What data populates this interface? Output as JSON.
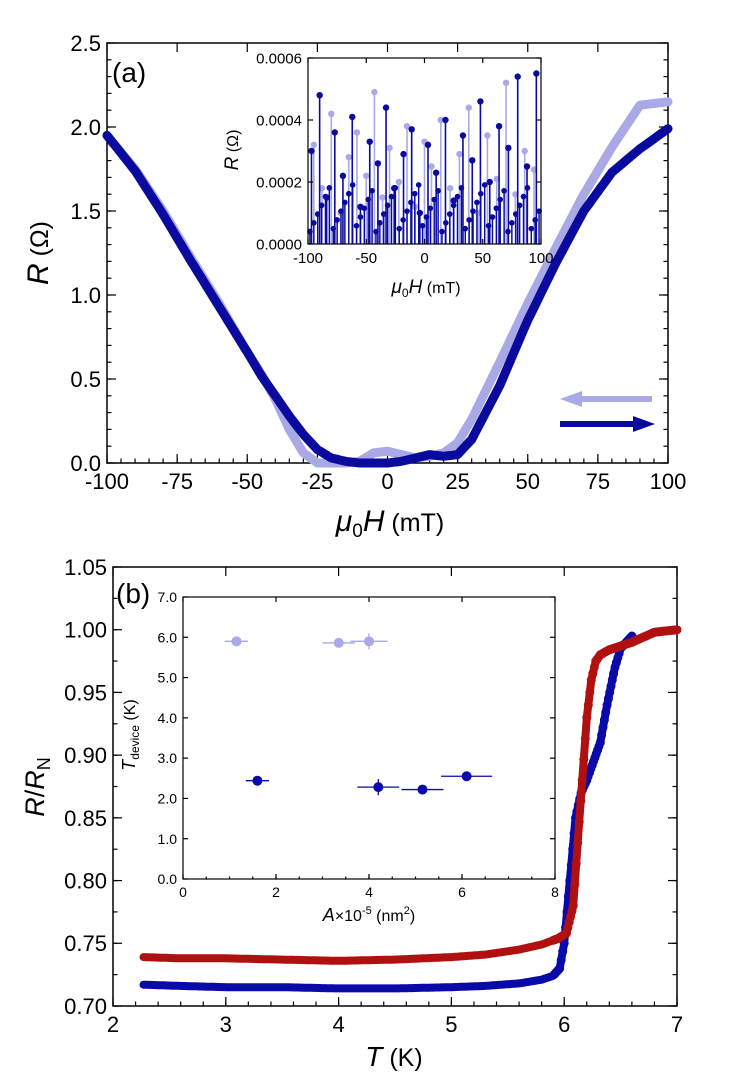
{
  "chart_data": [
    {
      "id": "a",
      "type": "line",
      "panel_label": "(a)",
      "xlabel_sym": "μ",
      "xlabel_sub": "0",
      "xlabel_var": "H",
      "xlabel_unit": "(mT)",
      "ylabel_var": "R",
      "ylabel_unit": "(Ω)",
      "xlim": [
        -100,
        100
      ],
      "ylim": [
        0,
        2.5
      ],
      "xticks": [
        "-100",
        "-75",
        "-50",
        "-25",
        "0",
        "25",
        "50",
        "75",
        "100"
      ],
      "yticks": [
        "0.0",
        "0.5",
        "1.0",
        "1.5",
        "2.0",
        "2.5"
      ],
      "legend": "arrows bottom-right: light = sweep down, dark = sweep up",
      "series": [
        {
          "name": "sweep down",
          "color": "#a9a9e6",
          "x": [
            -100,
            -90,
            -80,
            -70,
            -60,
            -50,
            -45,
            -40,
            -35,
            -30,
            -25,
            -20,
            -15,
            -10,
            -5,
            0,
            5,
            10,
            15,
            20,
            25,
            30,
            40,
            50,
            60,
            70,
            80,
            90,
            100
          ],
          "y": [
            1.95,
            1.75,
            1.5,
            1.22,
            0.95,
            0.66,
            0.53,
            0.38,
            0.2,
            0.06,
            0.0,
            0.0,
            0.0,
            0.01,
            0.06,
            0.07,
            0.05,
            0.03,
            0.04,
            0.06,
            0.12,
            0.26,
            0.6,
            0.95,
            1.28,
            1.6,
            1.88,
            2.13,
            2.15
          ]
        },
        {
          "name": "sweep up",
          "color": "#0a0a9e",
          "x": [
            -100,
            -90,
            -80,
            -70,
            -60,
            -50,
            -45,
            -40,
            -35,
            -30,
            -25,
            -20,
            -15,
            -10,
            -5,
            0,
            5,
            10,
            15,
            20,
            25,
            30,
            40,
            50,
            60,
            70,
            80,
            90,
            100
          ],
          "y": [
            1.95,
            1.74,
            1.48,
            1.2,
            0.93,
            0.66,
            0.52,
            0.4,
            0.28,
            0.17,
            0.08,
            0.03,
            0.01,
            0.0,
            0.0,
            0.0,
            0.01,
            0.03,
            0.05,
            0.04,
            0.05,
            0.14,
            0.46,
            0.85,
            1.19,
            1.5,
            1.73,
            1.87,
            1.99
          ]
        }
      ],
      "inset": {
        "type": "scatter",
        "xlabel_sym": "μ",
        "xlabel_sub": "0",
        "xlabel_var": "H",
        "xlabel_unit": "(mT)",
        "ylabel_var": "R",
        "ylabel_unit": "(Ω)",
        "xlim": [
          -100,
          100
        ],
        "ylim": [
          0,
          0.0006
        ],
        "xticks": [
          "-100",
          "-50",
          "0",
          "50",
          "100"
        ],
        "yticks": [
          "0.0000",
          "0.0002",
          "0.0004",
          "0.0006"
        ],
        "series": [
          {
            "name": "sweep down",
            "color": "#a9a9e6",
            "x": [
              -95,
              -88,
              -80,
              -72,
              -65,
              -58,
              -50,
              -43,
              -36,
              -30,
              -22,
              -15,
              -8,
              0,
              6,
              14,
              22,
              30,
              38,
              46,
              54,
              62,
              70,
              78,
              86,
              94
            ],
            "y": [
              0.00032,
              0.00018,
              0.00042,
              0.0001,
              0.00028,
              0.00036,
              0.00022,
              0.00049,
              0.00015,
              0.00031,
              0.0002,
              0.00038,
              0.00012,
              0.00033,
              0.00025,
              0.0004,
              0.00018,
              0.00029,
              0.00044,
              0.0001,
              0.00035,
              0.00021,
              0.00052,
              0.00016,
              0.0003,
              0.00024
            ]
          },
          {
            "name": "sweep up",
            "color": "#0a0a9e",
            "x": [
              -97,
              -90,
              -84,
              -77,
              -70,
              -62,
              -55,
              -47,
              -40,
              -33,
              -26,
              -18,
              -11,
              -4,
              3,
              10,
              18,
              25,
              33,
              41,
              48,
              56,
              64,
              72,
              80,
              88,
              96
            ],
            "y": [
              0.0003,
              0.00048,
              0.00015,
              0.00036,
              0.00022,
              0.00041,
              0.00012,
              0.00033,
              0.00026,
              0.00044,
              0.00018,
              0.00029,
              0.00037,
              0.0001,
              0.00032,
              0.00023,
              0.0004,
              0.00014,
              0.00035,
              0.00027,
              0.00046,
              0.0002,
              0.00038,
              0.00031,
              0.00054,
              0.00025,
              0.00055
            ]
          }
        ]
      }
    },
    {
      "id": "b",
      "type": "line",
      "panel_label": "(b)",
      "xlabel_var": "T",
      "xlabel_unit": "(K)",
      "ylabel_var": "R",
      "ylabel_slash": "/",
      "ylabel_var2": "R",
      "ylabel_sub": "N",
      "xlim": [
        2,
        7
      ],
      "ylim": [
        0.7,
        1.05
      ],
      "xticks": [
        "2",
        "3",
        "4",
        "5",
        "6",
        "7"
      ],
      "yticks": [
        "0.70",
        "0.75",
        "0.80",
        "0.85",
        "0.90",
        "0.95",
        "1.00",
        "1.05"
      ],
      "series": [
        {
          "name": "red",
          "color": "#b01010",
          "x": [
            2.27,
            2.6,
            3.0,
            3.5,
            4.0,
            4.5,
            5.0,
            5.3,
            5.6,
            5.8,
            5.95,
            6.02,
            6.08,
            6.12,
            6.16,
            6.2,
            6.24,
            6.28,
            6.32,
            6.4,
            6.6,
            6.8,
            7.0
          ],
          "y": [
            0.739,
            0.738,
            0.738,
            0.737,
            0.736,
            0.737,
            0.739,
            0.741,
            0.745,
            0.749,
            0.754,
            0.758,
            0.78,
            0.83,
            0.88,
            0.93,
            0.96,
            0.975,
            0.98,
            0.984,
            0.99,
            0.998,
            1.0
          ]
        },
        {
          "name": "blue",
          "color": "#0a0aa8",
          "x": [
            2.27,
            2.6,
            3.0,
            3.5,
            4.0,
            4.5,
            5.0,
            5.3,
            5.6,
            5.8,
            5.9,
            5.96,
            6.0,
            6.05,
            6.1,
            6.15,
            6.2,
            6.26,
            6.32,
            6.38,
            6.45,
            6.5,
            6.55,
            6.6
          ],
          "y": [
            0.717,
            0.716,
            0.715,
            0.715,
            0.714,
            0.714,
            0.715,
            0.716,
            0.718,
            0.721,
            0.724,
            0.73,
            0.75,
            0.8,
            0.85,
            0.87,
            0.88,
            0.895,
            0.91,
            0.94,
            0.97,
            0.985,
            0.99,
            0.995
          ]
        }
      ],
      "inset": {
        "type": "scatter",
        "xlabel_var": "A",
        "xlabel_times": "×10",
        "xlabel_exp": "-5",
        "xlabel_unit": "(nm",
        "xlabel_unit_exp": "2",
        "xlabel_unit_close": ")",
        "ylabel_var": "T",
        "ylabel_sub": "device",
        "ylabel_unit": "(K)",
        "xlim": [
          0,
          8
        ],
        "ylim": [
          0,
          7
        ],
        "xticks": [
          "0",
          "2",
          "4",
          "6",
          "8"
        ],
        "yticks": [
          "0.0",
          "1.0",
          "2.0",
          "3.0",
          "4.0",
          "5.0",
          "6.0",
          "7.0"
        ],
        "series": [
          {
            "name": "light",
            "color": "#a9a9e6",
            "points": [
              {
                "x": 1.15,
                "y": 5.9,
                "xerr": 0.25,
                "yerr": 0.05
              },
              {
                "x": 3.35,
                "y": 5.86,
                "xerr": 0.35,
                "yerr": 0.05
              },
              {
                "x": 4.0,
                "y": 5.9,
                "xerr": 0.4,
                "yerr": 0.2
              }
            ]
          },
          {
            "name": "dark",
            "color": "#0a0aa8",
            "points": [
              {
                "x": 1.6,
                "y": 2.44,
                "xerr": 0.25,
                "yerr": 0.05
              },
              {
                "x": 4.2,
                "y": 2.28,
                "xerr": 0.45,
                "yerr": 0.2
              },
              {
                "x": 5.15,
                "y": 2.22,
                "xerr": 0.45,
                "yerr": 0.05
              },
              {
                "x": 6.1,
                "y": 2.55,
                "xerr": 0.55,
                "yerr": 0.05
              }
            ]
          }
        ]
      }
    }
  ]
}
